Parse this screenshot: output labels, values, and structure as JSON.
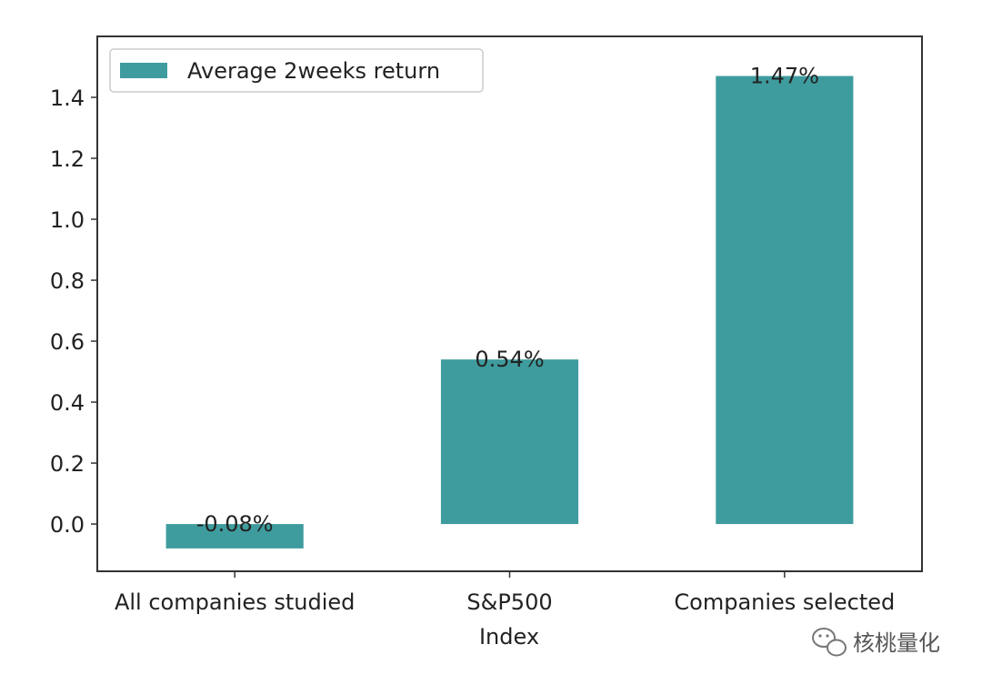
{
  "chart_data": {
    "type": "bar",
    "categories": [
      "All companies studied",
      "S&P500",
      "Companies selected"
    ],
    "series": [
      {
        "name": "Average 2weeks return",
        "values": [
          -0.08,
          0.54,
          1.47
        ]
      }
    ],
    "data_labels": [
      "-0.08%",
      "0.54%",
      "1.47%"
    ],
    "xlabel": "Index",
    "ylabel": "",
    "ylim": [
      -0.155,
      1.6
    ],
    "yticks": [
      0.0,
      0.2,
      0.4,
      0.6,
      0.8,
      1.0,
      1.2,
      1.4
    ],
    "ytick_labels": [
      "0.0",
      "0.2",
      "0.4",
      "0.6",
      "0.8",
      "1.0",
      "1.2",
      "1.4"
    ],
    "grid": false,
    "legend_position": "top-left",
    "bar_color": "#3f9c9e"
  },
  "watermark": {
    "text": "核桃量化",
    "icon": "wechat-icon"
  }
}
